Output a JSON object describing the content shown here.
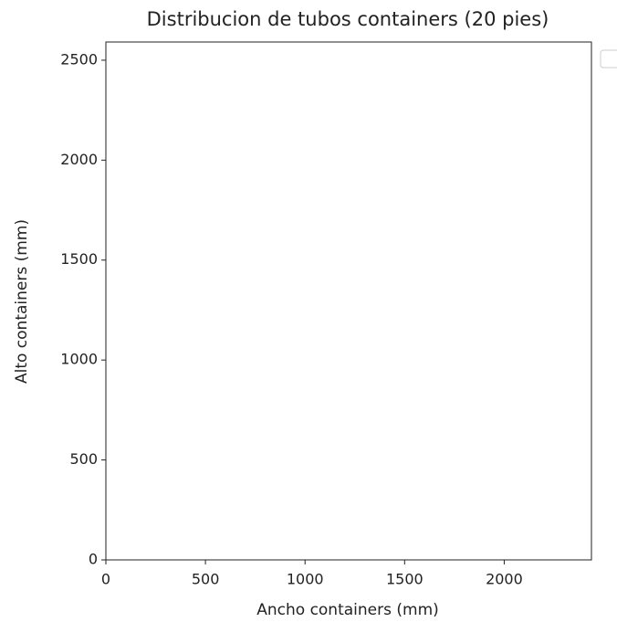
{
  "chart_data": {
    "type": "scatter",
    "title": "Distribucion de tubos containers (20 pies)",
    "xlabel": "Ancho containers (mm)",
    "ylabel": "Alto containers (mm)",
    "xlim": [
      0,
      2438
    ],
    "ylim": [
      0,
      2591
    ],
    "xticks": [
      0,
      500,
      1000,
      1500,
      2000
    ],
    "yticks": [
      0,
      500,
      1000,
      1500,
      2000,
      2500
    ],
    "grid": false,
    "legend": "outside right"
  }
}
